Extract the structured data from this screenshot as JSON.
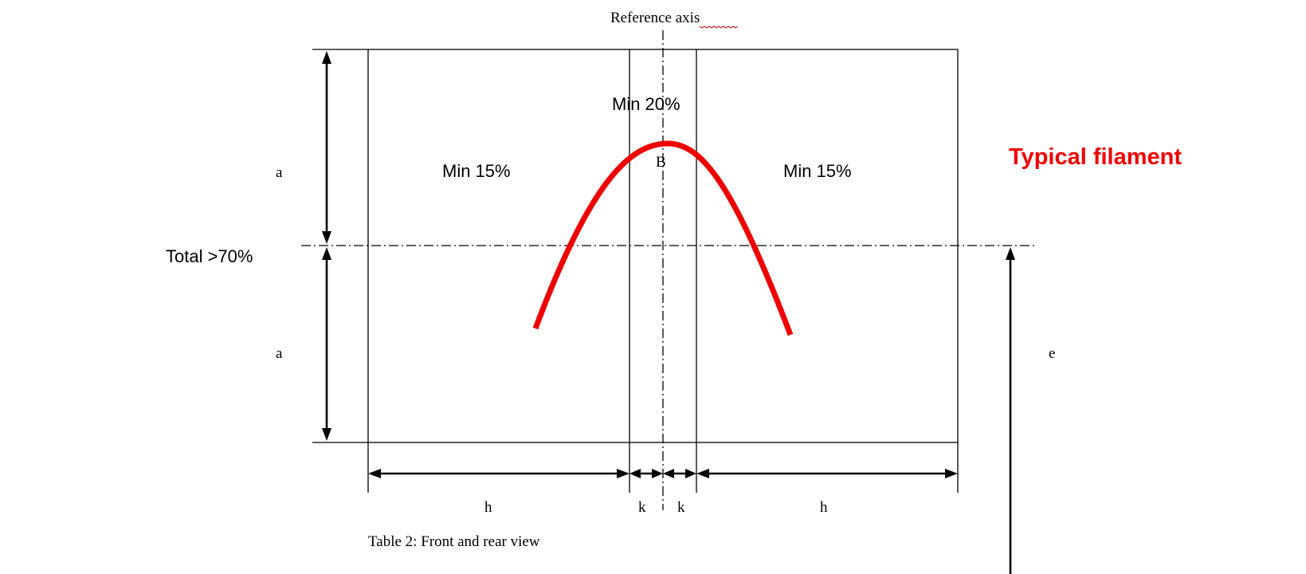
{
  "labels": {
    "reference_axis": "Reference axis",
    "a_upper": "a",
    "a_lower": "a",
    "center_point": "B",
    "e": "e",
    "h_left": "h",
    "k_left": "k",
    "k_right": "k",
    "h_right": "h",
    "caption": "Table 2: Front and rear view"
  },
  "annotations": {
    "total": "Total >70%",
    "min_center": "Min 20%",
    "min_left": "Min 15%",
    "min_right": "Min 15%",
    "typical_filament": "Typical filament"
  },
  "colors": {
    "filament": "#ee0000",
    "lines": "#000000",
    "spellcheck_underline": "#c00000"
  }
}
